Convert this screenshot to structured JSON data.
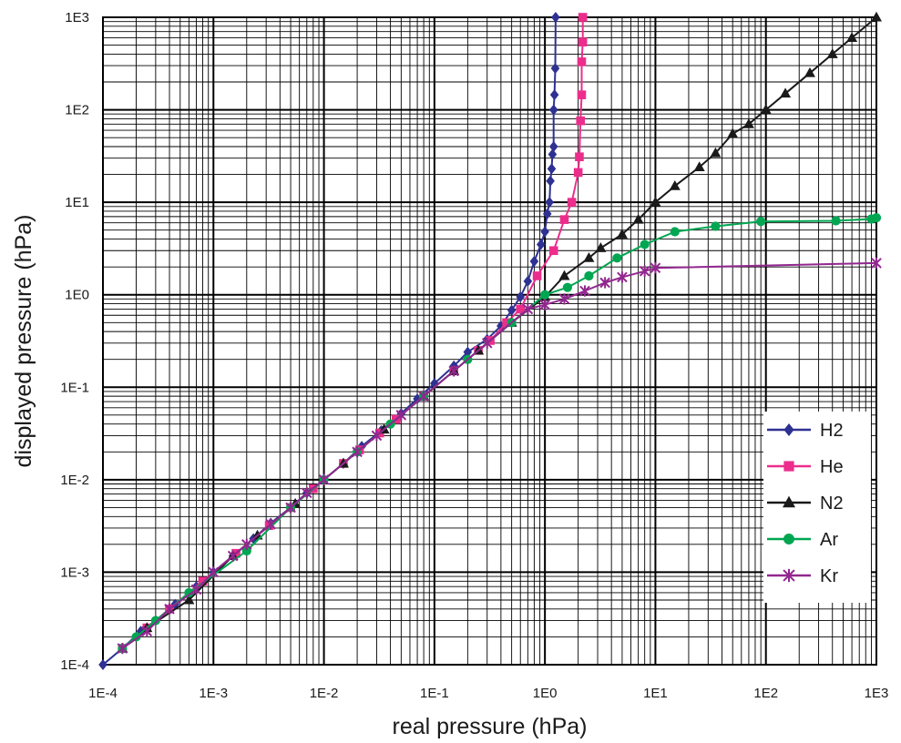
{
  "chart_data": {
    "type": "line",
    "xscale": "log",
    "yscale": "log",
    "xlabel": "real pressure (hPa)",
    "ylabel": "displayed pressure (hPa)",
    "xlim": [
      0.0001,
      1000
    ],
    "ylim": [
      0.0001,
      1000
    ],
    "xticks": [
      {
        "value": 0.0001,
        "label": "1E-4"
      },
      {
        "value": 0.001,
        "label": "1E-3"
      },
      {
        "value": 0.01,
        "label": "1E-2"
      },
      {
        "value": 0.1,
        "label": "1E-1"
      },
      {
        "value": 1,
        "label": "1E0"
      },
      {
        "value": 10,
        "label": "1E1"
      },
      {
        "value": 100,
        "label": "1E2"
      },
      {
        "value": 1000,
        "label": "1E3"
      }
    ],
    "yticks": [
      {
        "value": 0.0001,
        "label": "1E-4"
      },
      {
        "value": 0.001,
        "label": "1E-3"
      },
      {
        "value": 0.01,
        "label": "1E-2"
      },
      {
        "value": 0.1,
        "label": "1E-1"
      },
      {
        "value": 1,
        "label": "1E0"
      },
      {
        "value": 10,
        "label": "1E1"
      },
      {
        "value": 100,
        "label": "1E2"
      },
      {
        "value": 1000,
        "label": "1E3"
      }
    ],
    "grid": true,
    "legend_position": "bottom-right",
    "series": [
      {
        "name": "H2",
        "color": "#2e3192",
        "marker": "diamond",
        "points": [
          [
            0.0001,
            0.0001
          ],
          [
            0.00015,
            0.00015
          ],
          [
            0.00022,
            0.00023
          ],
          [
            0.0003,
            0.0003
          ],
          [
            0.00045,
            0.00045
          ],
          [
            0.0007,
            0.0007
          ],
          [
            0.001,
            0.001
          ],
          [
            0.0015,
            0.0015
          ],
          [
            0.0023,
            0.0023
          ],
          [
            0.0033,
            0.0034
          ],
          [
            0.005,
            0.005
          ],
          [
            0.007,
            0.0072
          ],
          [
            0.01,
            0.01
          ],
          [
            0.015,
            0.015
          ],
          [
            0.022,
            0.023
          ],
          [
            0.033,
            0.034
          ],
          [
            0.05,
            0.052
          ],
          [
            0.07,
            0.075
          ],
          [
            0.1,
            0.11
          ],
          [
            0.15,
            0.17
          ],
          [
            0.2,
            0.24
          ],
          [
            0.3,
            0.33
          ],
          [
            0.4,
            0.46
          ],
          [
            0.5,
            0.68
          ],
          [
            0.6,
            0.95
          ],
          [
            0.7,
            1.4
          ],
          [
            0.8,
            2.3
          ],
          [
            0.92,
            3.5
          ],
          [
            1.0,
            4.8
          ],
          [
            1.05,
            7.5
          ],
          [
            1.1,
            10
          ],
          [
            1.12,
            17
          ],
          [
            1.15,
            23
          ],
          [
            1.17,
            33
          ],
          [
            1.2,
            40
          ],
          [
            1.2,
            100
          ],
          [
            1.22,
            145
          ],
          [
            1.24,
            280
          ],
          [
            1.25,
            1000
          ]
        ]
      },
      {
        "name": "He",
        "color": "#ec2d8c",
        "marker": "square",
        "points": [
          [
            0.00015,
            0.00015
          ],
          [
            0.00025,
            0.00025
          ],
          [
            0.0004,
            0.0004
          ],
          [
            0.0008,
            0.0008
          ],
          [
            0.0016,
            0.0016
          ],
          [
            0.0032,
            0.0032
          ],
          [
            0.005,
            0.005
          ],
          [
            0.008,
            0.008
          ],
          [
            0.015,
            0.015
          ],
          [
            0.021,
            0.021
          ],
          [
            0.032,
            0.032
          ],
          [
            0.045,
            0.045
          ],
          [
            0.08,
            0.08
          ],
          [
            0.15,
            0.15
          ],
          [
            0.25,
            0.25
          ],
          [
            0.32,
            0.32
          ],
          [
            0.45,
            0.5
          ],
          [
            0.6,
            0.7
          ],
          [
            0.85,
            1.6
          ],
          [
            1.2,
            3.0
          ],
          [
            1.5,
            6.5
          ],
          [
            1.75,
            10
          ],
          [
            2.0,
            21
          ],
          [
            2.05,
            31
          ],
          [
            2.1,
            76
          ],
          [
            2.15,
            145
          ],
          [
            2.15,
            330
          ],
          [
            2.2,
            540
          ],
          [
            2.2,
            1000
          ]
        ]
      },
      {
        "name": "N2",
        "color": "#1a1a1a",
        "marker": "triangle",
        "points": [
          [
            0.00015,
            0.00015
          ],
          [
            0.00025,
            0.00025
          ],
          [
            0.0006,
            0.0005
          ],
          [
            0.0015,
            0.0015
          ],
          [
            0.0025,
            0.0025
          ],
          [
            0.0055,
            0.0055
          ],
          [
            0.015,
            0.015
          ],
          [
            0.035,
            0.035
          ],
          [
            0.08,
            0.08
          ],
          [
            0.15,
            0.15
          ],
          [
            0.25,
            0.25
          ],
          [
            0.5,
            0.5
          ],
          [
            1.0,
            0.95
          ],
          [
            1.5,
            1.6
          ],
          [
            2.5,
            2.5
          ],
          [
            3.2,
            3.2
          ],
          [
            5.0,
            4.5
          ],
          [
            7.0,
            6.5
          ],
          [
            10,
            10
          ],
          [
            15,
            15
          ],
          [
            25,
            24
          ],
          [
            35,
            34
          ],
          [
            50,
            55
          ],
          [
            70,
            70
          ],
          [
            100,
            100
          ],
          [
            150,
            150
          ],
          [
            250,
            250
          ],
          [
            400,
            400
          ],
          [
            600,
            600
          ],
          [
            1000,
            1000
          ]
        ]
      },
      {
        "name": "Ar",
        "color": "#00a651",
        "marker": "circle",
        "points": [
          [
            0.00015,
            0.00015
          ],
          [
            0.0002,
            0.0002
          ],
          [
            0.0003,
            0.0003
          ],
          [
            0.0006,
            0.0006
          ],
          [
            0.002,
            0.0017
          ],
          [
            0.005,
            0.005
          ],
          [
            0.01,
            0.01
          ],
          [
            0.02,
            0.02
          ],
          [
            0.04,
            0.04
          ],
          [
            0.08,
            0.08
          ],
          [
            0.2,
            0.2
          ],
          [
            0.5,
            0.5
          ],
          [
            1.0,
            1.0
          ],
          [
            1.6,
            1.2
          ],
          [
            2.5,
            1.6
          ],
          [
            4.5,
            2.5
          ],
          [
            8.0,
            3.5
          ],
          [
            15,
            4.8
          ],
          [
            35,
            5.5
          ],
          [
            90,
            6.2
          ],
          [
            430,
            6.3
          ],
          [
            900,
            6.6
          ],
          [
            1000,
            6.8
          ]
        ]
      },
      {
        "name": "Kr",
        "color": "#92278f",
        "marker": "star",
        "points": [
          [
            0.00015,
            0.00015
          ],
          [
            0.00025,
            0.00023
          ],
          [
            0.0004,
            0.0004
          ],
          [
            0.0007,
            0.00065
          ],
          [
            0.001,
            0.001
          ],
          [
            0.0015,
            0.0015
          ],
          [
            0.002,
            0.002
          ],
          [
            0.0033,
            0.0033
          ],
          [
            0.005,
            0.005
          ],
          [
            0.007,
            0.0072
          ],
          [
            0.01,
            0.01
          ],
          [
            0.02,
            0.02
          ],
          [
            0.03,
            0.03
          ],
          [
            0.05,
            0.05
          ],
          [
            0.08,
            0.08
          ],
          [
            0.15,
            0.15
          ],
          [
            0.3,
            0.3
          ],
          [
            0.7,
            0.7
          ],
          [
            1.0,
            0.78
          ],
          [
            1.5,
            0.9
          ],
          [
            2.3,
            1.1
          ],
          [
            3.5,
            1.35
          ],
          [
            5.0,
            1.55
          ],
          [
            8.0,
            1.8
          ],
          [
            10,
            1.95
          ],
          [
            1000,
            2.2
          ]
        ]
      }
    ]
  }
}
